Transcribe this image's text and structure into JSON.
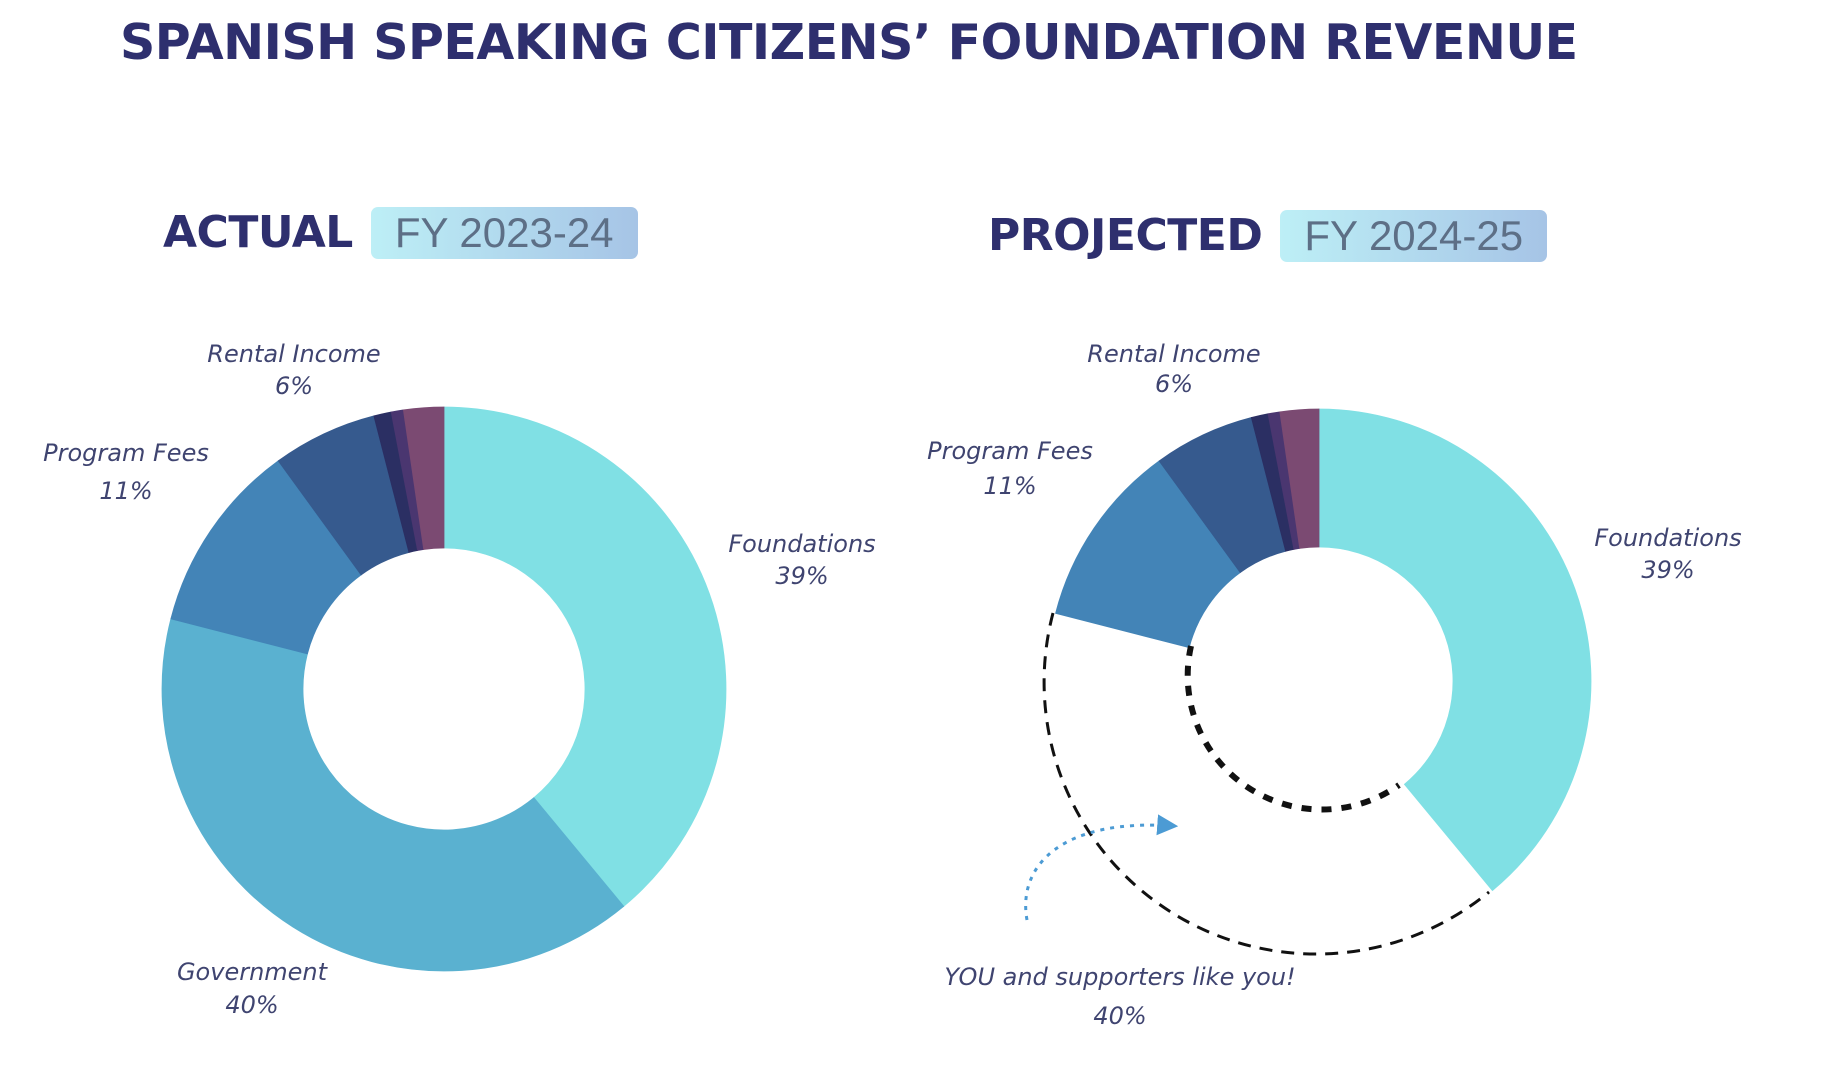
{
  "title": "SPANISH SPEAKING CITIZENS’ FOUNDATION  REVENUE",
  "colors": {
    "title": "#2e2f6e",
    "foundations": "#80e0e4",
    "government": "#5ab1d0",
    "program_fees": "#4384b7",
    "rental_income": "#365a8e",
    "other_1": "#2b2f63",
    "other_2": "#4a3670",
    "other_3": "#7b4a72",
    "annotation_arrow": "#4c9bd4",
    "dashed": "#111111"
  },
  "chart_data": [
    {
      "type": "pie",
      "heading": "ACTUAL",
      "badge": "FY 2023-24",
      "slices": [
        {
          "label": "Foundations",
          "value_label": "39%",
          "value": 39,
          "color": "#80e0e4"
        },
        {
          "label": "Government",
          "value_label": "40%",
          "value": 40,
          "color": "#5ab1d0"
        },
        {
          "label": "Program Fees",
          "value_label": "11%",
          "value": 11,
          "color": "#4384b7"
        },
        {
          "label": "Rental Income",
          "value_label": "6%",
          "value": 6,
          "color": "#365a8e"
        },
        {
          "label": "",
          "value_label": "",
          "value": 1,
          "color": "#2b2f63"
        },
        {
          "label": "",
          "value_label": "",
          "value": 0.7,
          "color": "#4a3670"
        },
        {
          "label": "",
          "value_label": "",
          "value": 2.3,
          "color": "#7b4a72"
        }
      ]
    },
    {
      "type": "pie",
      "heading": "PROJECTED",
      "badge": "FY 2024-25",
      "slices": [
        {
          "label": "Foundations",
          "value_label": "39%",
          "value": 39,
          "color": "#80e0e4"
        },
        {
          "label": "YOU and supporters like you!",
          "value_label": "40%",
          "value": 40,
          "color": "none",
          "dashed": true
        },
        {
          "label": "Program Fees",
          "value_label": "11%",
          "value": 11,
          "color": "#4384b7"
        },
        {
          "label": "Rental Income",
          "value_label": "6%",
          "value": 6,
          "color": "#365a8e"
        },
        {
          "label": "",
          "value_label": "",
          "value": 1,
          "color": "#2b2f63"
        },
        {
          "label": "",
          "value_label": "",
          "value": 0.7,
          "color": "#4a3670"
        },
        {
          "label": "",
          "value_label": "",
          "value": 2.3,
          "color": "#7b4a72"
        }
      ]
    }
  ]
}
